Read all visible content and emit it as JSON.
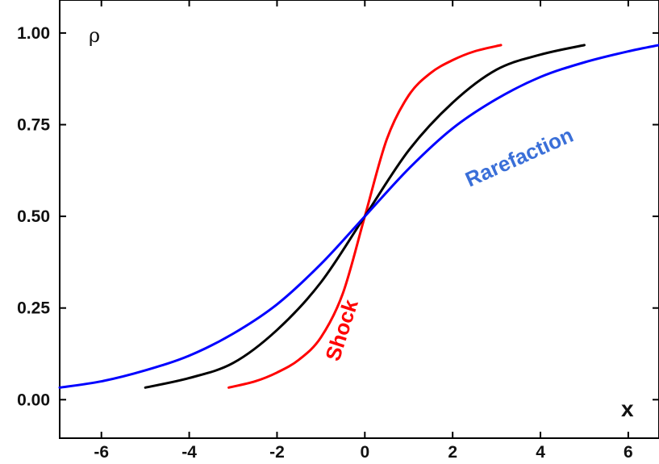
{
  "chart_data": {
    "type": "line",
    "xlabel": "x",
    "ylabel": "ρ",
    "xlim": [
      -6.95,
      6.7
    ],
    "ylim": [
      -0.105,
      1.09
    ],
    "x_ticks": [
      -6,
      -4,
      -2,
      0,
      2,
      4,
      6
    ],
    "x_tick_labels": [
      "-6",
      "-4",
      "-2",
      "0",
      "2",
      "4",
      "6"
    ],
    "y_ticks": [
      0.0,
      0.25,
      0.5,
      0.75,
      1.0
    ],
    "y_tick_labels": [
      "0.00",
      "0.25",
      "0.50",
      "0.75",
      "1.00"
    ],
    "grid": false,
    "series": [
      {
        "color": "#ff0000",
        "x": [
          -3.1,
          -2.5,
          -2.0,
          -1.5,
          -1.0,
          -0.5,
          0.0,
          0.5,
          1.0,
          1.5,
          2.0,
          2.5,
          3.1
        ],
        "y": [
          0.033,
          0.05,
          0.074,
          0.109,
          0.17,
          0.29,
          0.5,
          0.71,
          0.83,
          0.891,
          0.926,
          0.95,
          0.967
        ]
      },
      {
        "color": "#000000",
        "x": [
          -5.0,
          -4.0,
          -3.0,
          -2.0,
          -1.0,
          0.0,
          1.0,
          2.0,
          3.0,
          4.0,
          5.0
        ],
        "y": [
          0.033,
          0.059,
          0.1,
          0.19,
          0.32,
          0.5,
          0.68,
          0.81,
          0.9,
          0.941,
          0.967
        ]
      },
      {
        "color": "#0000ff",
        "x": [
          -6.95,
          -6.0,
          -5.0,
          -4.0,
          -3.0,
          -2.0,
          -1.0,
          0.0,
          1.0,
          2.0,
          3.0,
          4.0,
          5.0,
          6.0,
          6.7
        ],
        "y": [
          0.033,
          0.05,
          0.08,
          0.12,
          0.18,
          0.26,
          0.37,
          0.5,
          0.63,
          0.74,
          0.82,
          0.88,
          0.92,
          0.95,
          0.967
        ]
      }
    ],
    "annotations": [
      {
        "text": "Shock",
        "color": "#ff0000"
      },
      {
        "text": "Rarefaction",
        "color": "#3a6fd8"
      }
    ]
  }
}
